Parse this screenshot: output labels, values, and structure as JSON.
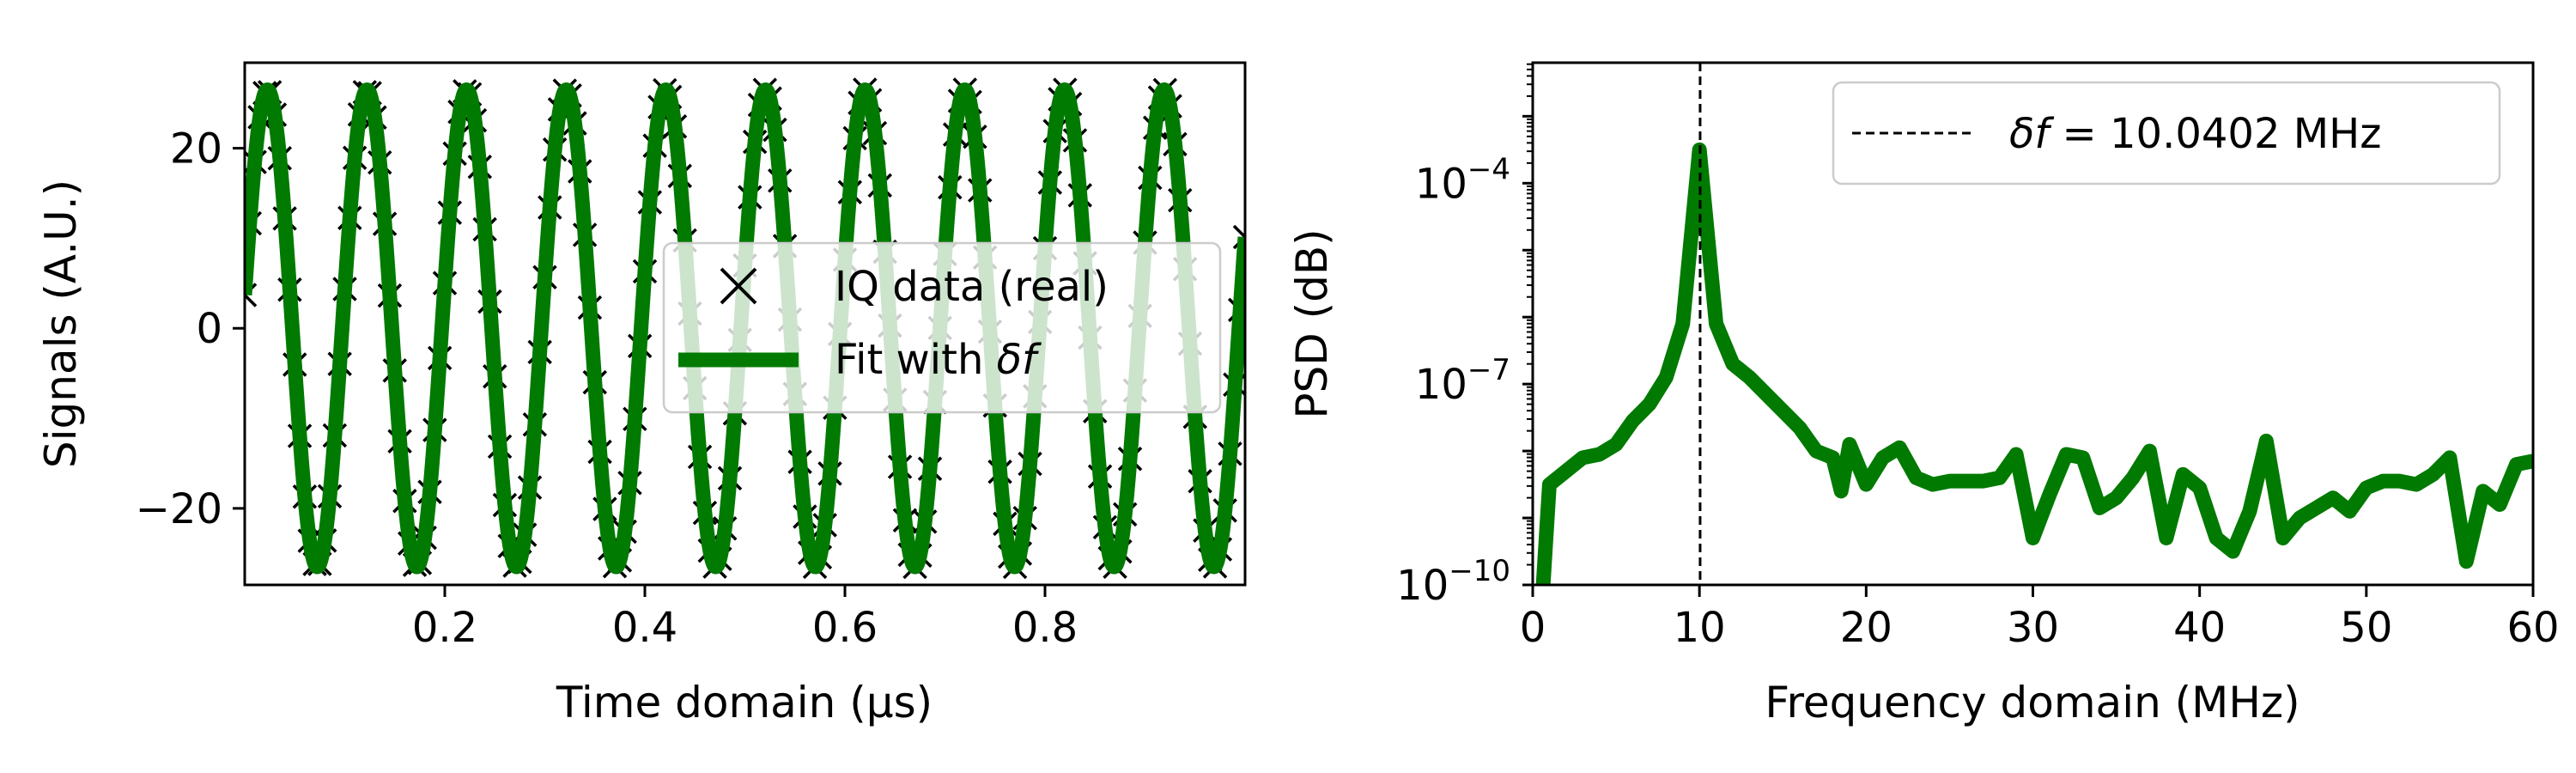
{
  "colors": {
    "fit": "#007a00",
    "data": "#000000",
    "marker": "#000000"
  },
  "chart_data": [
    {
      "type": "line",
      "xlabel": "Time domain (μs)",
      "ylabel": "Signals (A.U.)",
      "xlim": [
        0.0,
        1.0
      ],
      "ylim": [
        -28.5,
        29.5
      ],
      "xticks": [
        0.2,
        0.4,
        0.6,
        0.8
      ],
      "xtick_labels": [
        "0.2",
        "0.4",
        "0.6",
        "0.8"
      ],
      "yticks": [
        20,
        0,
        -20
      ],
      "ytick_labels": [
        "20",
        "0",
        "−20"
      ],
      "signal": {
        "amplitude": 26.5,
        "frequency_mhz": 10.0402,
        "phase_rad": 0.14
      },
      "sample_interval_us": 0.005,
      "series": [
        {
          "name": "IQ data (real)",
          "kind": "scatter",
          "marker": "x"
        },
        {
          "name": "Fit with δf",
          "kind": "line"
        }
      ],
      "legend": {
        "position": "center-right",
        "entries": [
          {
            "prefix": "IQ data (real)",
            "math": ""
          },
          {
            "prefix": "Fit with ",
            "math": "δf"
          }
        ]
      }
    },
    {
      "type": "line",
      "xlabel": "Frequency domain (MHz)",
      "ylabel": "PSD (dB)",
      "xlim": [
        0,
        60
      ],
      "ylim_log10": [
        -10,
        -2.2
      ],
      "yscale": "log",
      "xticks": [
        0,
        10,
        20,
        30,
        40,
        50,
        60
      ],
      "xtick_labels": [
        "0",
        "10",
        "20",
        "30",
        "40",
        "50",
        "60"
      ],
      "yticks": [
        -4,
        -7,
        -10
      ],
      "ytick_labels": [
        {
          "base": "10",
          "exp": "−4"
        },
        {
          "base": "10",
          "exp": "−7"
        },
        {
          "base": "10",
          "exp": "−10"
        }
      ],
      "vline": {
        "x": 10.0402,
        "style": "dashed"
      },
      "legend": {
        "position": "top-right",
        "entries": [
          {
            "math": "δf",
            "rest": " = 10.0402 MHz"
          }
        ]
      },
      "series": [
        {
          "name": "PSD",
          "x": [
            0.5,
            1,
            2,
            3,
            4,
            5,
            6,
            7,
            8,
            9,
            10,
            11,
            12,
            13,
            14,
            15,
            16,
            17,
            18,
            18.5,
            19,
            20,
            21,
            22,
            23,
            24,
            25,
            26,
            27,
            28,
            29,
            30,
            31,
            32,
            33,
            34,
            35,
            36,
            37,
            38,
            39,
            40,
            41,
            42,
            43,
            44,
            45,
            46,
            47,
            48,
            49,
            50,
            51,
            52,
            53,
            54,
            55,
            56,
            57,
            58,
            59,
            60
          ],
          "y_log10": [
            -10.5,
            -8.5,
            -8.3,
            -8.1,
            -8.05,
            -7.9,
            -7.55,
            -7.3,
            -6.9,
            -6.1,
            -3.5,
            -6.1,
            -6.7,
            -6.9,
            -7.15,
            -7.4,
            -7.65,
            -8.0,
            -8.1,
            -8.6,
            -7.9,
            -8.5,
            -8.1,
            -7.95,
            -8.4,
            -8.5,
            -8.45,
            -8.45,
            -8.45,
            -8.4,
            -8.05,
            -9.3,
            -8.65,
            -8.05,
            -8.1,
            -8.85,
            -8.7,
            -8.4,
            -8.0,
            -9.3,
            -8.35,
            -8.55,
            -9.3,
            -9.5,
            -8.9,
            -7.85,
            -9.3,
            -9.0,
            -8.85,
            -8.7,
            -8.9,
            -8.55,
            -8.45,
            -8.45,
            -8.5,
            -8.35,
            -8.1,
            -9.65,
            -8.6,
            -8.8,
            -8.2,
            -8.15
          ]
        }
      ]
    }
  ]
}
